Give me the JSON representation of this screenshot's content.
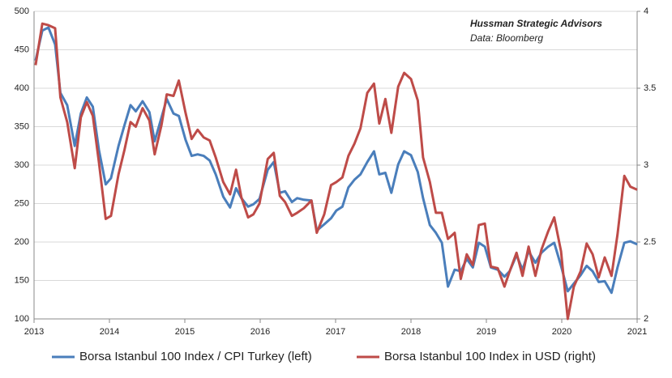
{
  "chart_data": {
    "type": "line",
    "annotations": [
      "Hussman Strategic Advisors",
      "Data: Bloomberg"
    ],
    "x": [
      2013.02,
      2013.11,
      2013.19,
      2013.28,
      2013.35,
      2013.44,
      2013.54,
      2013.62,
      2013.7,
      2013.78,
      2013.86,
      2013.95,
      2014.02,
      2014.12,
      2014.2,
      2014.28,
      2014.35,
      2014.44,
      2014.53,
      2014.6,
      2014.69,
      2014.76,
      2014.85,
      2014.92,
      2015.01,
      2015.09,
      2015.17,
      2015.25,
      2015.33,
      2015.41,
      2015.51,
      2015.6,
      2015.68,
      2015.75,
      2015.84,
      2015.91,
      2015.99,
      2016.1,
      2016.18,
      2016.26,
      2016.33,
      2016.42,
      2016.49,
      2016.58,
      2016.68,
      2016.75,
      2016.85,
      2016.94,
      2017.01,
      2017.09,
      2017.17,
      2017.25,
      2017.33,
      2017.42,
      2017.51,
      2017.58,
      2017.66,
      2017.74,
      2017.83,
      2017.91,
      2018.0,
      2018.09,
      2018.16,
      2018.25,
      2018.33,
      2018.41,
      2018.49,
      2018.58,
      2018.66,
      2018.74,
      2018.82,
      2018.9,
      2018.98,
      2019.06,
      2019.15,
      2019.24,
      2019.31,
      2019.4,
      2019.48,
      2019.56,
      2019.65,
      2019.73,
      2019.82,
      2019.9,
      2019.99,
      2020.08,
      2020.16,
      2020.25,
      2020.33,
      2020.41,
      2020.49,
      2020.57,
      2020.66,
      2020.74,
      2020.83,
      2020.91,
      2021.0
    ],
    "series": [
      {
        "name": "Borsa Istanbul 100 Index / CPI Turkey (left)",
        "color": "#4a7ebb",
        "axis": "y",
        "values": [
          436,
          475,
          479,
          457,
          394,
          378,
          325,
          367,
          388,
          376,
          320,
          275,
          283,
          325,
          352,
          378,
          370,
          383,
          369,
          331,
          362,
          386,
          367,
          364,
          333,
          312,
          314,
          312,
          306,
          288,
          259,
          245,
          270,
          257,
          246,
          249,
          256,
          294,
          304,
          264,
          266,
          252,
          257,
          255,
          254,
          215,
          223,
          231,
          241,
          246,
          271,
          281,
          288,
          304,
          318,
          288,
          290,
          264,
          301,
          318,
          313,
          291,
          257,
          222,
          212,
          199,
          142,
          164,
          162,
          178,
          167,
          199,
          194,
          167,
          164,
          155,
          162,
          183,
          164,
          188,
          173,
          186,
          194,
          199,
          169,
          136,
          146,
          157,
          169,
          162,
          148,
          149,
          134,
          167,
          199,
          201,
          197
        ]
      },
      {
        "name": "Borsa Istanbul 100 Index in USD (right)",
        "color": "#be4b48",
        "axis": "y2",
        "values": [
          3.65,
          3.92,
          3.91,
          3.89,
          3.44,
          3.28,
          2.98,
          3.31,
          3.41,
          3.32,
          3.02,
          2.65,
          2.67,
          2.94,
          3.1,
          3.28,
          3.25,
          3.37,
          3.29,
          3.07,
          3.26,
          3.46,
          3.45,
          3.55,
          3.34,
          3.17,
          3.23,
          3.18,
          3.16,
          3.05,
          2.89,
          2.81,
          2.97,
          2.79,
          2.66,
          2.68,
          2.75,
          3.04,
          3.08,
          2.8,
          2.76,
          2.67,
          2.69,
          2.72,
          2.77,
          2.56,
          2.68,
          2.87,
          2.89,
          2.92,
          3.06,
          3.14,
          3.24,
          3.47,
          3.53,
          3.27,
          3.43,
          3.21,
          3.51,
          3.6,
          3.56,
          3.42,
          3.05,
          2.89,
          2.69,
          2.69,
          2.52,
          2.56,
          2.26,
          2.42,
          2.35,
          2.61,
          2.62,
          2.34,
          2.33,
          2.21,
          2.31,
          2.43,
          2.28,
          2.47,
          2.28,
          2.45,
          2.57,
          2.66,
          2.44,
          2.0,
          2.21,
          2.31,
          2.49,
          2.42,
          2.27,
          2.4,
          2.28,
          2.55,
          2.93,
          2.86,
          2.84
        ]
      }
    ],
    "xlim": [
      2013,
      2021
    ],
    "xticks": [
      2013,
      2014,
      2015,
      2016,
      2017,
      2018,
      2019,
      2020,
      2021
    ],
    "ylim": [
      100,
      500
    ],
    "yticks": [
      100,
      150,
      200,
      250,
      300,
      350,
      400,
      450,
      500
    ],
    "y2lim": [
      2,
      4
    ],
    "y2ticks": [
      2,
      2.5,
      3,
      3.5,
      4
    ],
    "grid": true,
    "legend": "bottom"
  }
}
